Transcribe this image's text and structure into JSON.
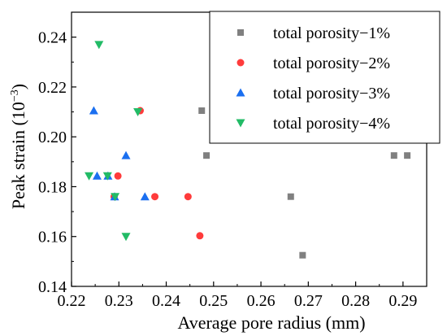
{
  "chart_data": {
    "type": "scatter",
    "xlabel": "Average pore radius (mm)",
    "ylabel": "Peak strain (10",
    "ylabel_superscript": "−3",
    "ylabel_close": ")",
    "xlim": [
      0.22,
      0.295
    ],
    "ylim": [
      0.14,
      0.25
    ],
    "xticks": [
      0.22,
      0.23,
      0.24,
      0.25,
      0.26,
      0.27,
      0.28,
      0.29
    ],
    "xtick_labels": [
      "0.22",
      "0.23",
      "0.24",
      "0.25",
      "0.26",
      "0.27",
      "0.28",
      "0.29"
    ],
    "yticks": [
      0.14,
      0.16,
      0.18,
      0.2,
      0.22,
      0.24
    ],
    "ytick_labels": [
      "0.14",
      "0.16",
      "0.18",
      "0.20",
      "0.22",
      "0.24"
    ],
    "grid": false,
    "legend_position": "top-right",
    "series": [
      {
        "name": "total porosity−1%",
        "marker": "square",
        "color": "#808080",
        "points": [
          [
            0.2475,
            0.2105
          ],
          [
            0.2485,
            0.1925
          ],
          [
            0.2663,
            0.176
          ],
          [
            0.2688,
            0.1525
          ],
          [
            0.2881,
            0.1925
          ],
          [
            0.2909,
            0.1925
          ]
        ]
      },
      {
        "name": "total porosity−2%",
        "marker": "circle",
        "color": "#ff3b3b",
        "points": [
          [
            0.2345,
            0.2105
          ],
          [
            0.2298,
            0.1843
          ],
          [
            0.229,
            0.176
          ],
          [
            0.2376,
            0.176
          ],
          [
            0.2446,
            0.176
          ],
          [
            0.2471,
            0.1603
          ]
        ]
      },
      {
        "name": "total porosity−3%",
        "marker": "triangle-up",
        "color": "#1a6ff0",
        "points": [
          [
            0.2247,
            0.2105
          ],
          [
            0.2315,
            0.1925
          ],
          [
            0.2254,
            0.1843
          ],
          [
            0.2277,
            0.1843
          ],
          [
            0.2291,
            0.176
          ],
          [
            0.2355,
            0.176
          ]
        ]
      },
      {
        "name": "total porosity−4%",
        "marker": "triangle-down",
        "color": "#22bb66",
        "points": [
          [
            0.2258,
            0.237
          ],
          [
            0.234,
            0.21
          ],
          [
            0.2237,
            0.1843
          ],
          [
            0.2276,
            0.1843
          ],
          [
            0.2292,
            0.176
          ],
          [
            0.2315,
            0.16
          ]
        ]
      }
    ]
  }
}
